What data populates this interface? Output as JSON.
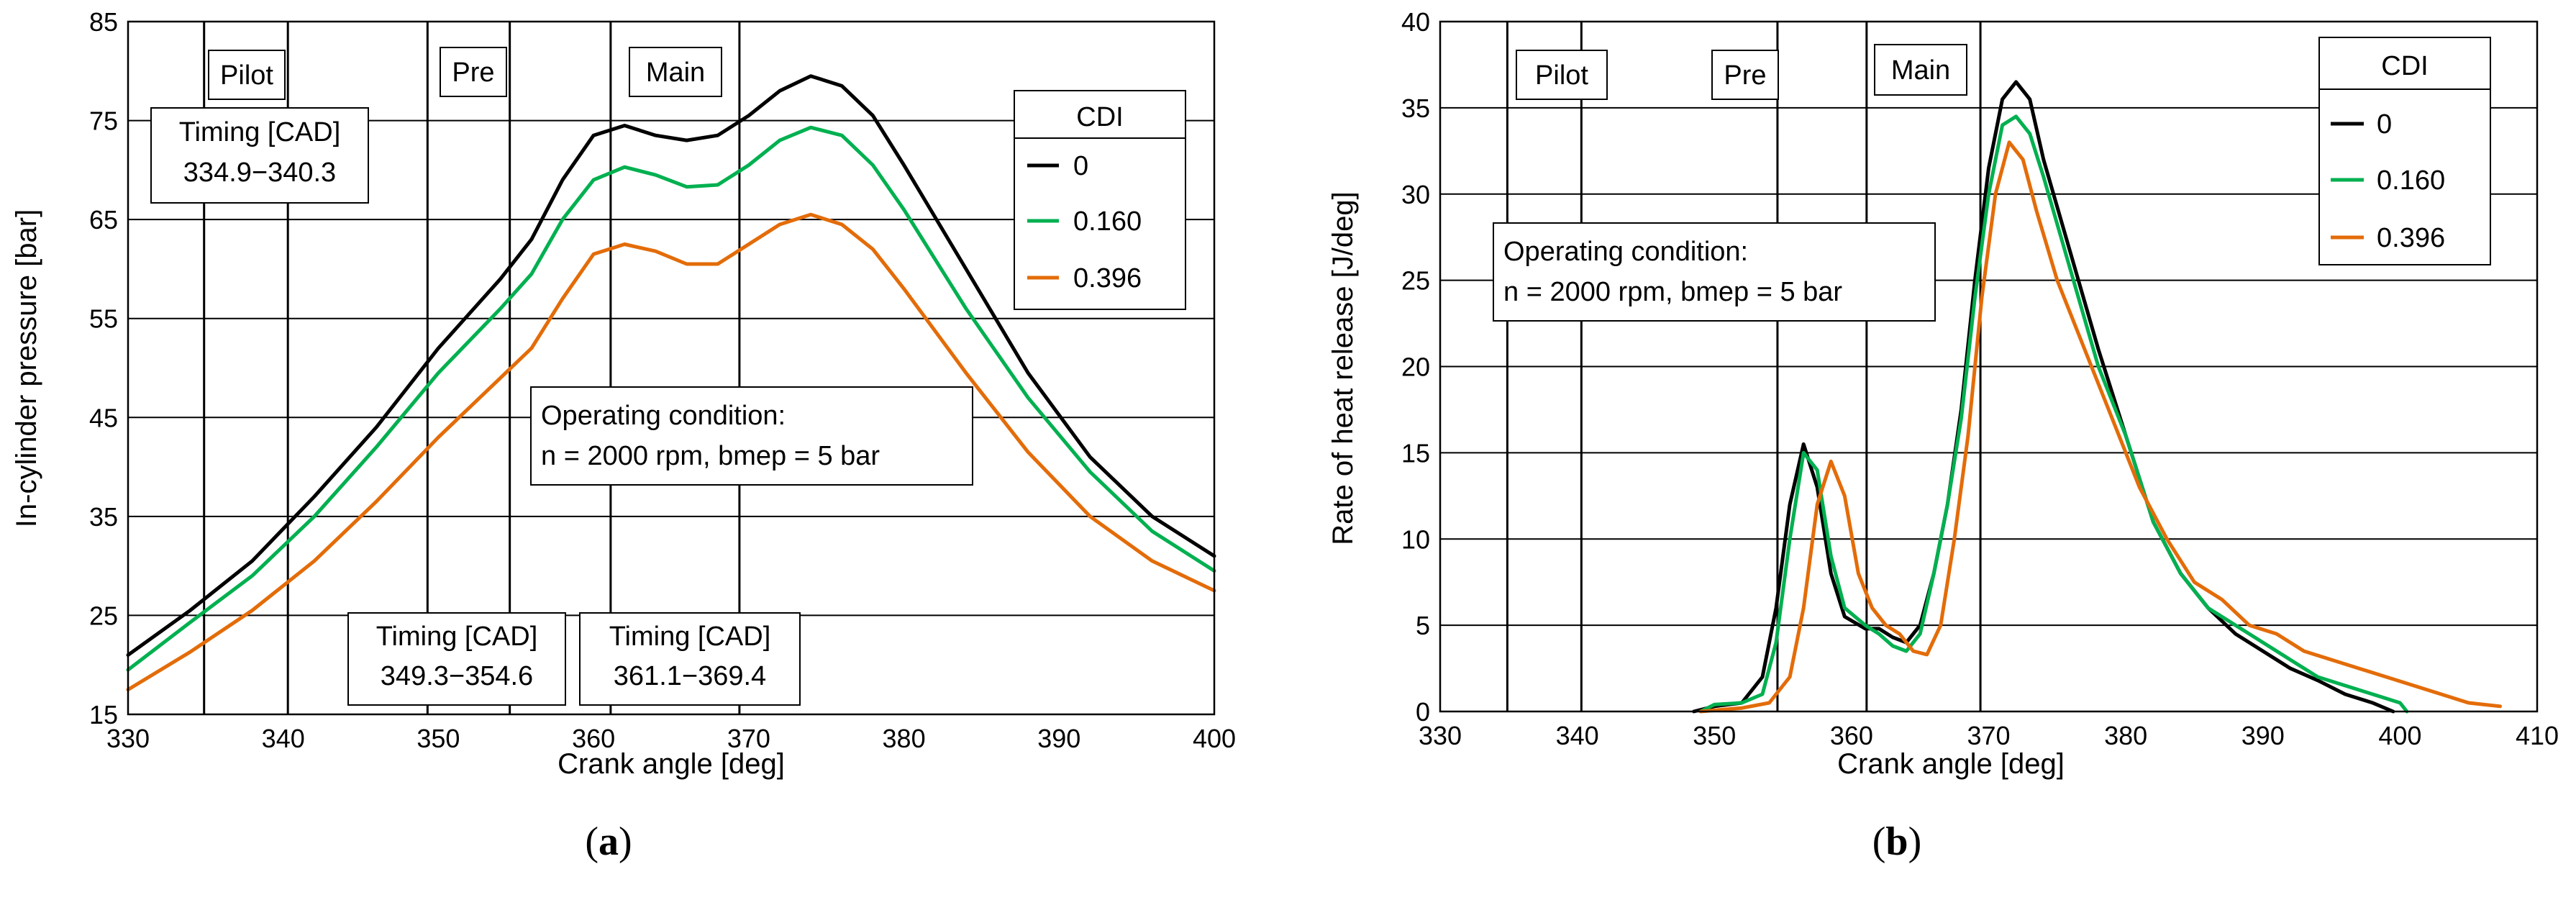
{
  "colors": {
    "cdi_0": "#000000",
    "cdi_0160": "#00b050",
    "cdi_0396": "#e36c09"
  },
  "chart_data": [
    {
      "panel": "a",
      "type": "line",
      "caption_open": "(",
      "caption_letter": "a",
      "caption_close": ")",
      "xlabel": "Crank angle [deg]",
      "ylabel": "In-cylinder pressure [bar]",
      "xlim": [
        330,
        400
      ],
      "ylim": [
        15,
        85
      ],
      "xticks": [
        330,
        340,
        350,
        360,
        370,
        380,
        390,
        400
      ],
      "yticks": [
        15,
        25,
        35,
        45,
        55,
        65,
        75,
        85
      ],
      "phase_lines": [
        334.9,
        340.3,
        349.3,
        354.6,
        361.1,
        369.4
      ],
      "phase_labels": {
        "pilot": "Pilot",
        "pre": "Pre",
        "main": "Main"
      },
      "timing_boxes": [
        {
          "title": "Timing [CAD]",
          "range": "334.9−340.3"
        },
        {
          "title": "Timing [CAD]",
          "range": "349.3−354.6"
        },
        {
          "title": "Timing [CAD]",
          "range": "361.1−369.4"
        }
      ],
      "condition": {
        "title": "Operating condition:",
        "text": "n = 2000 rpm, bmep = 5 bar"
      },
      "legend": {
        "title": "CDI",
        "entries": [
          "0",
          "0.160",
          "0.396"
        ],
        "position": "top-right"
      },
      "series": [
        {
          "name": "0",
          "x": [
            330,
            334,
            338,
            342,
            346,
            350,
            354,
            356,
            358,
            360,
            362,
            364,
            366,
            368,
            370,
            372,
            374,
            376,
            378,
            380,
            384,
            388,
            392,
            396,
            400
          ],
          "y": [
            21,
            25.5,
            30.5,
            37,
            44,
            52,
            59,
            63,
            69,
            73.5,
            74.5,
            73.5,
            73,
            73.5,
            75.5,
            78,
            79.5,
            78.5,
            75.5,
            70.5,
            60,
            49.5,
            41,
            35,
            31
          ]
        },
        {
          "name": "0.160",
          "x": [
            330,
            334,
            338,
            342,
            346,
            350,
            354,
            356,
            358,
            360,
            362,
            364,
            366,
            368,
            370,
            372,
            374,
            376,
            378,
            380,
            384,
            388,
            392,
            396,
            400
          ],
          "y": [
            19.5,
            24.3,
            29,
            35,
            42,
            49.5,
            56,
            59.5,
            65,
            69,
            70.3,
            69.5,
            68.3,
            68.5,
            70.5,
            73,
            74.3,
            73.5,
            70.5,
            66,
            56,
            47,
            39.5,
            33.5,
            29.5
          ]
        },
        {
          "name": "0.396",
          "x": [
            330,
            334,
            338,
            342,
            346,
            350,
            354,
            356,
            358,
            360,
            362,
            364,
            366,
            368,
            370,
            372,
            374,
            376,
            378,
            380,
            384,
            388,
            392,
            396,
            400
          ],
          "y": [
            17.5,
            21.3,
            25.5,
            30.5,
            36.5,
            43,
            49,
            52,
            57,
            61.5,
            62.5,
            61.8,
            60.5,
            60.5,
            62.5,
            64.5,
            65.5,
            64.5,
            62,
            58,
            49.5,
            41.5,
            35,
            30.5,
            27.5
          ]
        }
      ]
    },
    {
      "panel": "b",
      "type": "line",
      "caption_open": "(",
      "caption_letter": "b",
      "caption_close": ")",
      "xlabel": "Crank angle [deg]",
      "ylabel": "Rate of heat release [J/deg]",
      "xlim": [
        330,
        410
      ],
      "ylim": [
        0,
        40
      ],
      "xticks": [
        330,
        340,
        350,
        360,
        370,
        380,
        390,
        400,
        410
      ],
      "yticks": [
        0,
        5,
        10,
        15,
        20,
        25,
        30,
        35,
        40
      ],
      "phase_lines": [
        334.9,
        340.3,
        354.6,
        361.1,
        369.4
      ],
      "phase_labels": {
        "pilot": "Pilot",
        "pre": "Pre",
        "main": "Main"
      },
      "condition": {
        "title": "Operating condition:",
        "text": "n = 2000 rpm, bmep = 5 bar"
      },
      "legend": {
        "title": "CDI",
        "entries": [
          "0",
          "0.160",
          "0.396"
        ],
        "position": "top-right"
      },
      "series": [
        {
          "name": "0",
          "x": [
            348.5,
            350,
            352,
            353.5,
            354.5,
            355.5,
            356.5,
            357.5,
            358.5,
            359.5,
            361,
            362,
            363,
            364,
            365,
            366,
            367,
            368,
            369,
            370,
            371,
            372,
            373,
            374,
            376,
            378,
            380,
            382,
            384,
            386,
            388,
            390,
            392,
            394,
            396,
            398,
            399.5
          ],
          "y": [
            0,
            0.3,
            0.5,
            2,
            6,
            12,
            15.5,
            13,
            8,
            5.5,
            4.8,
            4.8,
            4.3,
            4,
            5,
            8,
            12,
            17.5,
            25,
            31.5,
            35.5,
            36.5,
            35.5,
            32,
            26.5,
            21,
            16,
            11,
            8,
            6,
            4.5,
            3.5,
            2.5,
            1.8,
            1,
            0.5,
            0
          ]
        },
        {
          "name": "0.160",
          "x": [
            349,
            350,
            352,
            353.5,
            354.5,
            355.5,
            356.5,
            357.5,
            358.5,
            359.5,
            361,
            362,
            363,
            364,
            365,
            366,
            367,
            368,
            369,
            370,
            371,
            372,
            373,
            374,
            376,
            378,
            380,
            382,
            384,
            386,
            388,
            390,
            392,
            394,
            396,
            398,
            400,
            400.5
          ],
          "y": [
            0,
            0.4,
            0.5,
            1,
            4,
            10,
            15,
            14,
            9,
            6,
            5,
            4.5,
            3.8,
            3.5,
            4.5,
            8,
            12,
            17,
            24,
            30,
            34,
            34.5,
            33.5,
            31,
            25.5,
            20,
            16,
            11,
            8,
            6,
            5,
            4,
            3,
            2,
            1.5,
            1,
            0.5,
            0
          ]
        },
        {
          "name": "0.396",
          "x": [
            349,
            352,
            354,
            355.5,
            356.5,
            357.5,
            358.5,
            359.5,
            360.5,
            361.5,
            362.5,
            363.5,
            364.5,
            365.5,
            366.5,
            367.5,
            368.5,
            369.5,
            370.5,
            371.5,
            372.5,
            373.5,
            375,
            377,
            379,
            381,
            383,
            385,
            387,
            389,
            391,
            393,
            395,
            397,
            399,
            401,
            403,
            405,
            407.3
          ],
          "y": [
            0,
            0.2,
            0.5,
            2,
            6,
            12,
            14.5,
            12.5,
            8,
            6,
            5,
            4.5,
            3.5,
            3.3,
            5,
            10,
            16,
            24,
            30,
            33,
            32,
            29,
            25,
            21,
            17,
            13,
            10,
            7.5,
            6.5,
            5,
            4.5,
            3.5,
            3,
            2.5,
            2,
            1.5,
            1,
            0.5,
            0.3
          ]
        }
      ]
    }
  ]
}
